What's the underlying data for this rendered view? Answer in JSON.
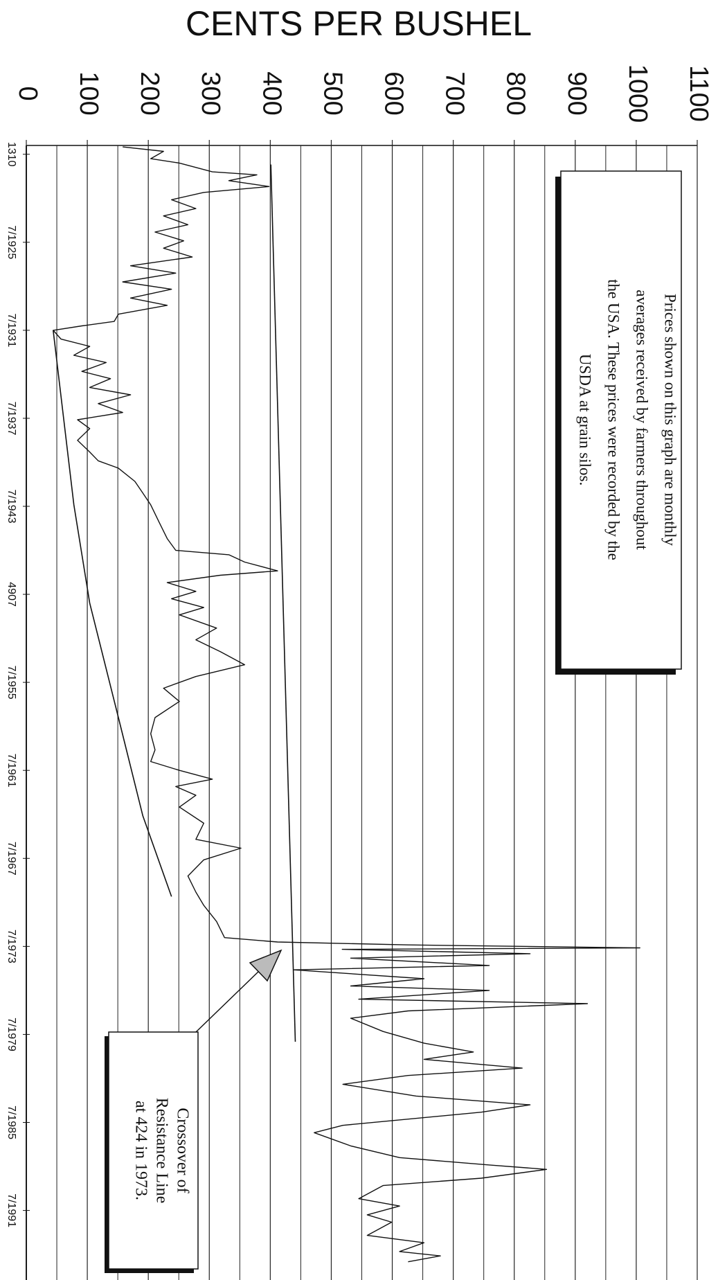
{
  "chart_data": {
    "type": "line",
    "title": "CENTS PER BUSHEL",
    "x": [
      1919.0,
      1919.3,
      1919.8,
      1920.1,
      1920.7,
      1920.9,
      1921.3,
      1921.7,
      1922.1,
      1922.6,
      1923.2,
      1923.7,
      1924.3,
      1924.8,
      1925.4,
      1925.9,
      1926.5,
      1927.1,
      1927.6,
      1928.2,
      1928.7,
      1929.3,
      1929.8,
      1930.4,
      1930.9,
      1931.2,
      1931.5,
      1932.1,
      1932.6,
      1933.2,
      1933.7,
      1934.3,
      1934.8,
      1935.4,
      1935.9,
      1936.5,
      1937.1,
      1937.6,
      1938.2,
      1939.0,
      1939.8,
      1940.4,
      1940.9,
      1941.8,
      1942.6,
      1943.4,
      1944.6,
      1945.7,
      1946.5,
      1946.8,
      1947.3,
      1947.9,
      1948.2,
      1948.7,
      1949.3,
      1949.8,
      1950.4,
      1950.9,
      1951.8,
      1952.6,
      1953.4,
      1954.3,
      1955.1,
      1955.9,
      1956.8,
      1957.9,
      1959.0,
      1960.1,
      1960.9,
      1961.5,
      1962.1,
      1962.6,
      1963.2,
      1964.0,
      1965.1,
      1966.2,
      1966.8,
      1967.6,
      1968.7,
      1969.8,
      1970.7,
      1971.8,
      1972.9,
      1973.2,
      1973.4,
      1973.6,
      1973.7,
      1974.0,
      1974.3,
      1974.8,
      1975.1,
      1975.7,
      1976.2,
      1976.5,
      1977.1,
      1977.4,
      1977.9,
      1978.4,
      1979.3,
      1980.1,
      1980.7,
      1981.2,
      1981.8,
      1982.3,
      1982.9,
      1983.7,
      1984.3,
      1984.8,
      1985.7,
      1986.2,
      1987.1,
      1987.9,
      1988.4,
      1988.7,
      1989.3,
      1989.8,
      1990.7,
      1991.2,
      1991.8,
      1992.3,
      1993.2,
      1993.7,
      1994.3,
      1994.6,
      1995.0
    ],
    "values": [
      158,
      225,
      204,
      251,
      305,
      378,
      332,
      398,
      291,
      238,
      278,
      225,
      265,
      211,
      258,
      225,
      272,
      171,
      245,
      158,
      238,
      171,
      231,
      151,
      144,
      91,
      44,
      57,
      104,
      78,
      131,
      91,
      138,
      104,
      171,
      118,
      158,
      84,
      104,
      84,
      104,
      118,
      151,
      178,
      191,
      204,
      218,
      231,
      245,
      332,
      358,
      412,
      318,
      231,
      278,
      238,
      291,
      251,
      312,
      278,
      318,
      358,
      278,
      225,
      251,
      211,
      204,
      211,
      204,
      251,
      305,
      245,
      278,
      251,
      291,
      278,
      352,
      291,
      265,
      278,
      291,
      312,
      325,
      412,
      626,
      1006,
      518,
      826,
      532,
      759,
      438,
      652,
      532,
      759,
      545,
      920,
      626,
      532,
      585,
      652,
      733,
      652,
      813,
      626,
      519,
      639,
      826,
      746,
      519,
      472,
      532,
      612,
      759,
      853,
      746,
      585,
      545,
      612,
      559,
      599,
      559,
      652,
      612,
      679,
      626
    ],
    "color": "#111111",
    "lines": [
      {
        "x": [
          1920.2,
          1980.0
        ],
        "values": [
          401,
          441
        ]
      },
      {
        "x": [
          1931.5,
          1943.4,
          1950.1,
          1957.9,
          1964.6,
          1970.1
        ],
        "values": [
          44,
          78,
          104,
          151,
          191,
          238
        ]
      }
    ],
    "ylim": [
      0,
      1100
    ],
    "yticks": [
      0,
      100,
      200,
      300,
      400,
      500,
      600,
      700,
      800,
      900,
      1000,
      1100
    ],
    "minor_yticks": [
      50,
      150,
      250,
      350,
      450,
      550,
      650,
      750,
      850,
      950,
      1050
    ],
    "xlim": [
      1918.9,
      1996.1
    ],
    "xticks": [
      {
        "value": 1919.5,
        "label": "1310"
      },
      {
        "value": 1925.5,
        "label": "7/1925"
      },
      {
        "value": 1931.5,
        "label": "7/1931"
      },
      {
        "value": 1937.5,
        "label": "7/1937"
      },
      {
        "value": 1943.5,
        "label": "7/1943"
      },
      {
        "value": 1949.5,
        "label": "4907"
      },
      {
        "value": 1955.5,
        "label": "7/1955"
      },
      {
        "value": 1961.5,
        "label": "7/1961"
      },
      {
        "value": 1967.5,
        "label": "7/1967"
      },
      {
        "value": 1973.5,
        "label": "7/1973"
      },
      {
        "value": 1979.5,
        "label": "7/1979"
      },
      {
        "value": 1985.5,
        "label": "7/1985"
      },
      {
        "value": 1991.5,
        "label": "7/1991"
      }
    ],
    "grid": true,
    "annotations": [
      {
        "lines": [
          "Prices shown on this graph are monthly",
          "averages received by farmers throughout",
          "the USA. These prices were recorded by the",
          "USDA at grain silos."
        ]
      },
      {
        "lines": [
          "Crossover of",
          "Resistance Line",
          "at 424 in 1973."
        ]
      }
    ]
  }
}
